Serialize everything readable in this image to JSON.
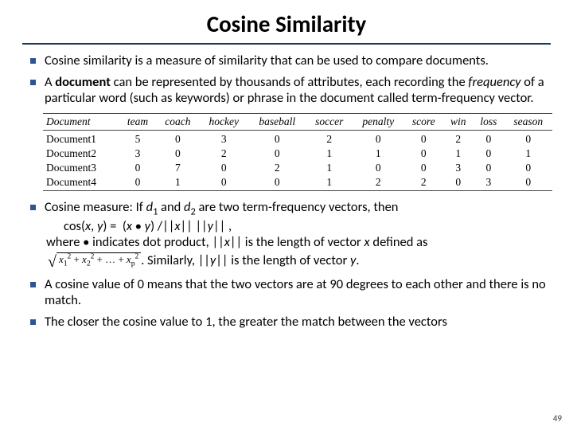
{
  "title": "Cosine Similarity",
  "title_fontsize": 29,
  "title_rule_color": "#1f3864",
  "bullet_color": "#2f5496",
  "body_fontsize": 16.5,
  "table_fontsize": 13.5,
  "slide_number": "49",
  "bullets_top": [
    "Cosine similarity is a measure of similarity that can be used to compare documents.",
    "A <b>document</b> can be represented by thousands of attributes, each recording the <i>frequency</i> of a particular word (such as keywords) or phrase in the document called term-frequency vector."
  ],
  "table": {
    "columns": [
      "Document",
      "team",
      "coach",
      "hockey",
      "baseball",
      "soccer",
      "penalty",
      "score",
      "win",
      "loss",
      "season"
    ],
    "rows": [
      [
        "Document1",
        "5",
        "0",
        "3",
        "0",
        "2",
        "0",
        "0",
        "2",
        "0",
        "0"
      ],
      [
        "Document2",
        "3",
        "0",
        "2",
        "0",
        "1",
        "1",
        "0",
        "1",
        "0",
        "1"
      ],
      [
        "Document3",
        "0",
        "7",
        "0",
        "2",
        "1",
        "0",
        "0",
        "3",
        "0",
        "0"
      ],
      [
        "Document4",
        "0",
        "1",
        "0",
        "0",
        "1",
        "2",
        "2",
        "0",
        "3",
        "0"
      ]
    ]
  },
  "cosine_measure_intro": "Cosine measure: If ",
  "d1": "d",
  "sub1": "1",
  "and_text": " and ",
  "d2": "d",
  "sub2": "2",
  "cosine_measure_tail": " are two term-frequency vectors, then",
  "formula_line": "cos(x, y) =  (x • y) /||x|| ||y|| ,",
  "where_line": "where • indicates dot product, ||x|| is the length of vector x defined as",
  "sqrt_terms": {
    "t1": "x",
    "s1": "1",
    "t2": "x",
    "s2": "2",
    "dots": "…",
    "tp": "x",
    "sp": "p"
  },
  "similarly_text": ". Similarly, ||y|| is the length of vector y.",
  "bullet4": "A cosine value of 0 means that the two vectors are at 90 degrees to each other and there is no match.",
  "bullet5": "The closer the cosine value to 1, the greater the match between the vectors"
}
